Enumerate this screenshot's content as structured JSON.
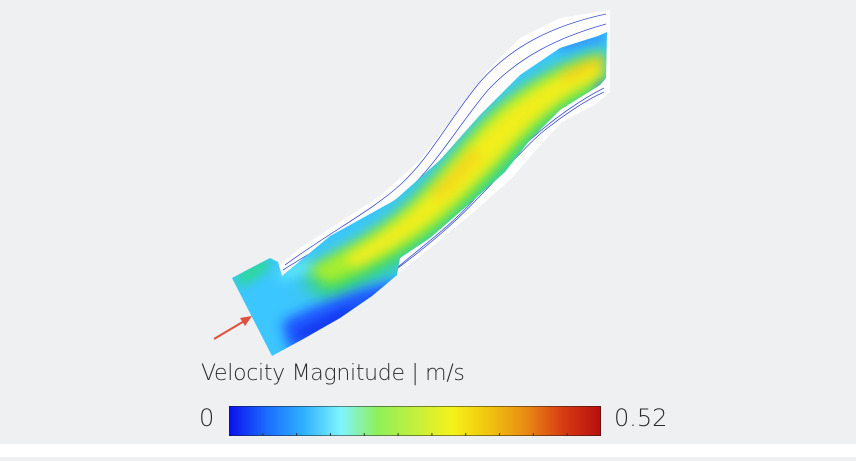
{
  "legend": {
    "title": "Velocity Magnitude | m/s",
    "min_label": "0",
    "max_label": "0.52",
    "min_value": 0,
    "max_value": 0.52,
    "colormap": [
      "#0a10ee",
      "#1b6bff",
      "#2fb0ff",
      "#7ff4ff",
      "#8ff05a",
      "#c2f03c",
      "#f4f21a",
      "#f0c40e",
      "#e98a14",
      "#d63a12",
      "#b80e0e"
    ]
  },
  "arrow": {
    "color": "#e0503c"
  }
}
